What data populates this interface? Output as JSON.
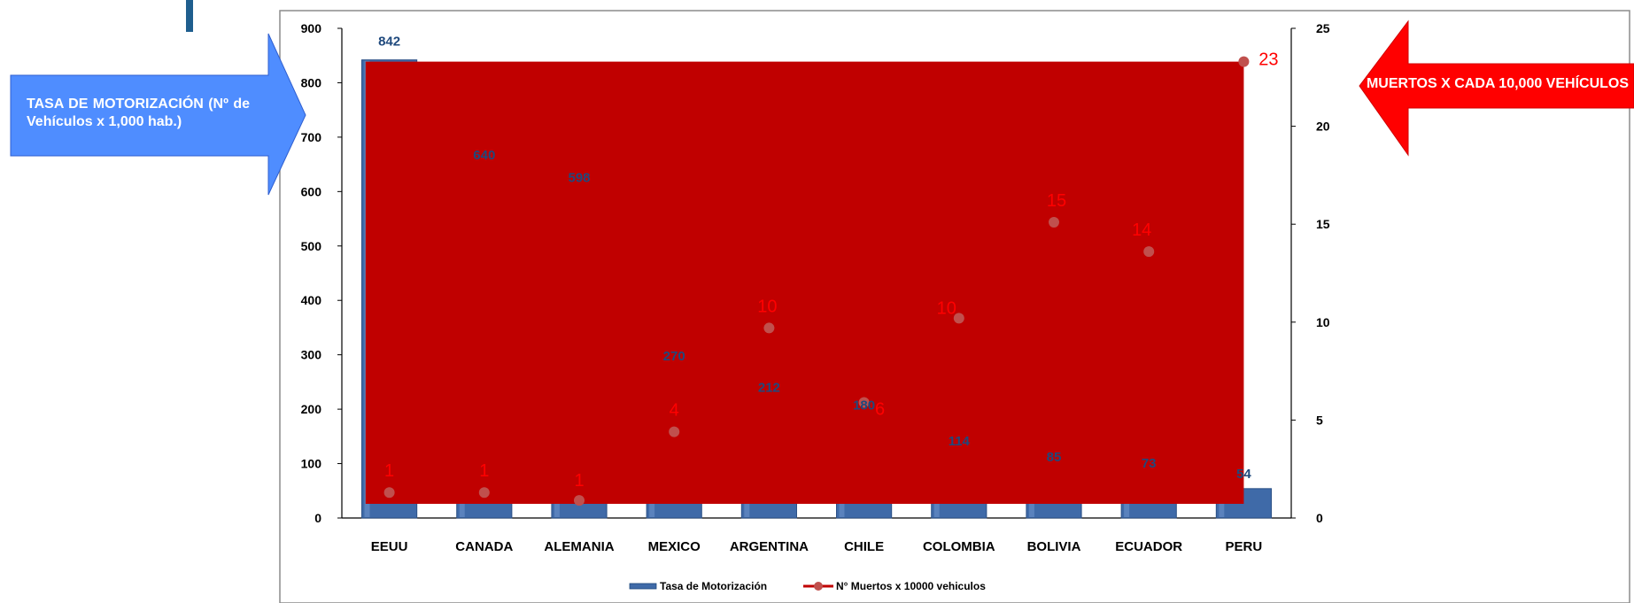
{
  "callouts": {
    "left": "TASA DE MOTORIZACIÓN (Nº de Vehículos x 1,000 hab.)",
    "right": "MUERTOS X CADA 10,000 VEHÍCULOS"
  },
  "colors": {
    "bar": "#3f6aa8",
    "line": "#c00000",
    "marker": "#c0504d",
    "left_callout": "#4f8dff",
    "right_callout": "#ff0000",
    "bar_label": "#1f497d",
    "line_label": "#ff0000"
  },
  "chart_data": {
    "type": "bar",
    "categories": [
      "EEUU",
      "CANADA",
      "ALEMANIA",
      "MEXICO",
      "ARGENTINA",
      "CHILE",
      "COLOMBIA",
      "BOLIVIA",
      "ECUADOR",
      "PERU"
    ],
    "series": [
      {
        "name": "Tasa de Motorización",
        "type": "bar",
        "axis": "left",
        "values": [
          842,
          640,
          598,
          270,
          212,
          180,
          114,
          85,
          73,
          54
        ]
      },
      {
        "name": "N° Muertos x 10000 vehiculos",
        "type": "line",
        "axis": "right",
        "values": [
          1.3,
          1.3,
          0.9,
          4.4,
          9.7,
          5.9,
          10.2,
          15.1,
          13.6,
          23.3
        ],
        "labels": [
          "1",
          "1",
          "1",
          "4",
          "10",
          "6",
          "10",
          "15",
          "14",
          "23"
        ]
      }
    ],
    "y_left": {
      "min": 0,
      "max": 900,
      "ticks": [
        0,
        100,
        200,
        300,
        400,
        500,
        600,
        700,
        800,
        900
      ]
    },
    "y_right": {
      "min": 0,
      "max": 25,
      "ticks": [
        0,
        5,
        10,
        15,
        20,
        25
      ]
    },
    "legend": "bottom",
    "grid": false
  }
}
